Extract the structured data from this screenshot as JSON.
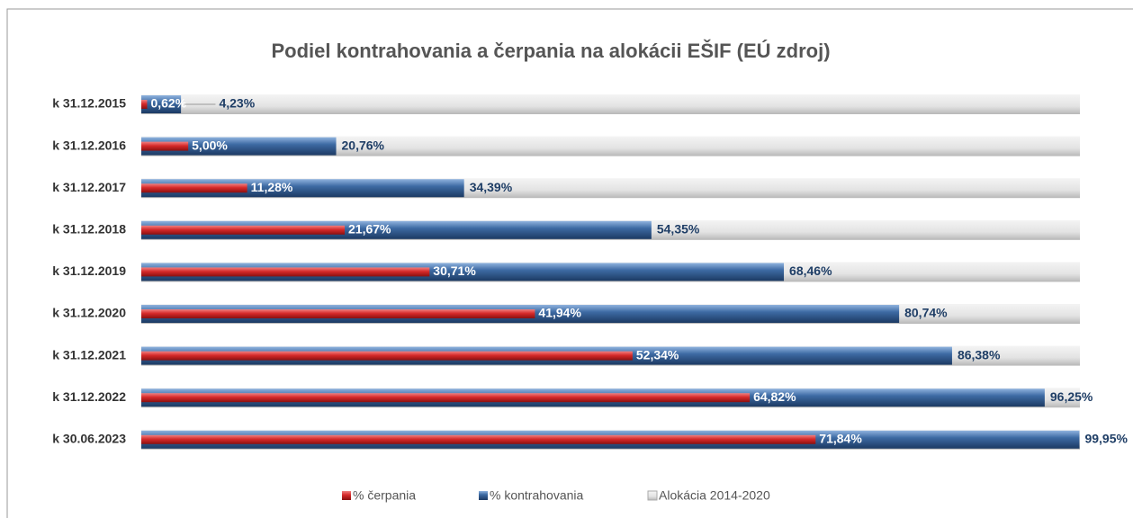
{
  "chart_data": {
    "type": "bar",
    "orientation": "horizontal",
    "title": "Podiel kontrahovania a čerpania na alokácii EŠIF (EÚ zdroj)",
    "categories": [
      "k 31.12.2015",
      "k 31.12.2016",
      "k 31.12.2017",
      "k 31.12.2018",
      "k 31.12.2019",
      "k 31.12.2020",
      "k 31.12.2021",
      "k 31.12.2022",
      "k 30.06.2023"
    ],
    "series": [
      {
        "name": "% čerpania",
        "color": "#c0282d",
        "values": [
          0.62,
          5.0,
          11.28,
          21.67,
          30.71,
          41.94,
          52.34,
          64.82,
          71.84
        ],
        "value_labels": [
          "0,62%",
          "5,00%",
          "11,28%",
          "21,67%",
          "30,71%",
          "41,94%",
          "52,34%",
          "64,82%",
          "71,84%"
        ]
      },
      {
        "name": "% kontrahovania",
        "color": "#2c5385",
        "values": [
          4.23,
          20.76,
          34.39,
          54.35,
          68.46,
          80.74,
          86.38,
          96.25,
          99.95
        ],
        "value_labels": [
          "4,23%",
          "20,76%",
          "34,39%",
          "54,35%",
          "68,46%",
          "80,74%",
          "86,38%",
          "96,25%",
          "99,95%"
        ]
      },
      {
        "name": "Alokácia 2014-2020",
        "color": "#e3e3e3",
        "values": [
          100,
          100,
          100,
          100,
          100,
          100,
          100,
          100,
          100
        ]
      }
    ],
    "xlim": [
      0,
      100
    ]
  }
}
